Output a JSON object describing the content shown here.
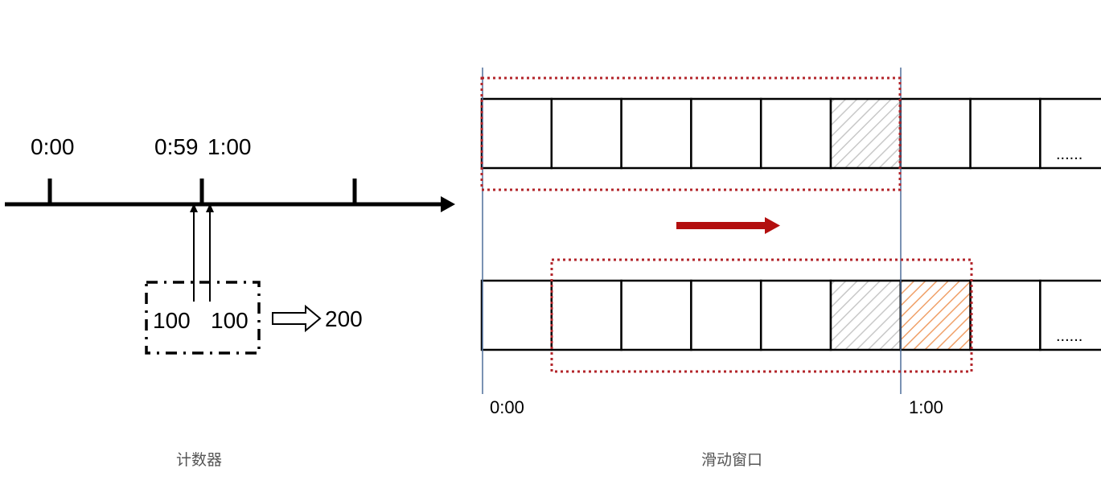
{
  "counter": {
    "tick_labels": [
      "0:00",
      "0:59",
      "1:00"
    ],
    "requests": [
      "100",
      "100"
    ],
    "total": "200",
    "caption": "计数器"
  },
  "sliding_window": {
    "ellipsis": "......",
    "time_labels": [
      "0:00",
      "1:00"
    ],
    "caption": "滑动窗口",
    "colors": {
      "window_border": "#b3262b",
      "arrow": "#b30f0f",
      "boundary_line": "#4f6f9a",
      "hatch_gray": "#c8c8c8",
      "hatch_orange": "#f0a068"
    }
  }
}
